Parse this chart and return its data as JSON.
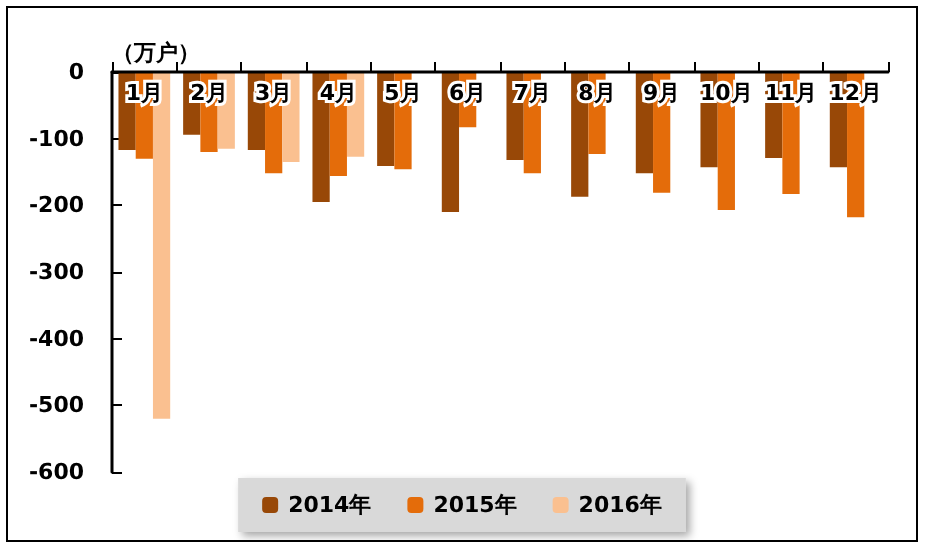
{
  "chart_data": {
    "type": "bar",
    "ylabel": "（万户）",
    "categories": [
      "1月",
      "2月",
      "3月",
      "4月",
      "5月",
      "6月",
      "7月",
      "8月",
      "9月",
      "10月",
      "11月",
      "12月"
    ],
    "series": [
      {
        "name": "2014年",
        "color": "#984807",
        "values": [
          -117,
          -94,
          -117,
          -195,
          -141,
          -210,
          -132,
          -187,
          -152,
          -143,
          -129,
          -143
        ]
      },
      {
        "name": "2015年",
        "color": "#e46c0a",
        "values": [
          -130,
          -120,
          -152,
          -156,
          -146,
          -83,
          -152,
          -123,
          -181,
          -207,
          -183,
          -218
        ]
      },
      {
        "name": "2016年",
        "color": "#fac090",
        "values": [
          -520,
          -115,
          -135,
          -127,
          null,
          null,
          null,
          null,
          null,
          null,
          null,
          null
        ]
      }
    ],
    "ylim": [
      -600,
      0
    ],
    "yticks": [
      -600,
      -500,
      -400,
      -300,
      -200,
      -100,
      0
    ],
    "grid": false,
    "legend": "bottom"
  }
}
